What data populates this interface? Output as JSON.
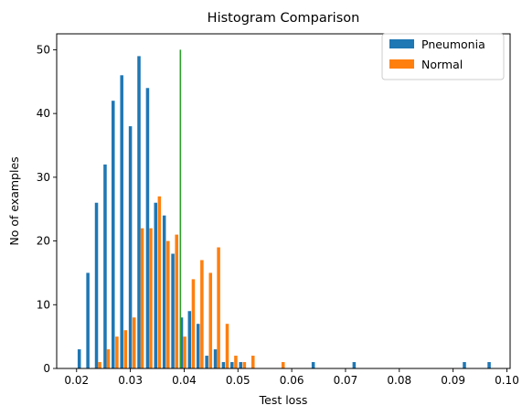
{
  "chart_data": {
    "type": "bar",
    "title": "Histogram Comparison",
    "xlabel": "Test loss",
    "ylabel": "No of examples",
    "xlim": [
      0.0163,
      0.1006
    ],
    "ylim": [
      0,
      52.5
    ],
    "xticks": [
      0.02,
      0.03,
      0.04,
      0.05,
      0.06,
      0.07,
      0.08,
      0.09,
      0.1
    ],
    "xtick_labels": [
      "0.02",
      "0.03",
      "0.04",
      "0.05",
      "0.06",
      "0.07",
      "0.08",
      "0.09",
      "0.10"
    ],
    "yticks": [
      0,
      10,
      20,
      30,
      40,
      50
    ],
    "ytick_labels": [
      "0",
      "10",
      "20",
      "30",
      "40",
      "50"
    ],
    "bar_width": 0.0006,
    "grid": false,
    "legend_position": "top-right",
    "series": [
      {
        "name": "Pneumonia",
        "color": "#1f77b4",
        "bins": [
          {
            "x": 0.0205,
            "y": 3
          },
          {
            "x": 0.0221,
            "y": 15
          },
          {
            "x": 0.0237,
            "y": 26
          },
          {
            "x": 0.0253,
            "y": 32
          },
          {
            "x": 0.0268,
            "y": 42
          },
          {
            "x": 0.0284,
            "y": 46
          },
          {
            "x": 0.03,
            "y": 38
          },
          {
            "x": 0.0316,
            "y": 49
          },
          {
            "x": 0.0332,
            "y": 44
          },
          {
            "x": 0.0347,
            "y": 26
          },
          {
            "x": 0.0363,
            "y": 24
          },
          {
            "x": 0.0379,
            "y": 18
          },
          {
            "x": 0.0395,
            "y": 8
          },
          {
            "x": 0.041,
            "y": 9
          },
          {
            "x": 0.0426,
            "y": 7
          },
          {
            "x": 0.0442,
            "y": 2
          },
          {
            "x": 0.0458,
            "y": 3
          },
          {
            "x": 0.0473,
            "y": 1
          },
          {
            "x": 0.0489,
            "y": 1
          },
          {
            "x": 0.0505,
            "y": 1
          },
          {
            "x": 0.064,
            "y": 1
          },
          {
            "x": 0.0716,
            "y": 1
          },
          {
            "x": 0.0921,
            "y": 1
          },
          {
            "x": 0.0967,
            "y": 1
          }
        ]
      },
      {
        "name": "Normal",
        "color": "#ff7f0e",
        "bins": [
          {
            "x": 0.0243,
            "y": 1
          },
          {
            "x": 0.0259,
            "y": 3
          },
          {
            "x": 0.0275,
            "y": 5
          },
          {
            "x": 0.0291,
            "y": 6
          },
          {
            "x": 0.0307,
            "y": 8
          },
          {
            "x": 0.0322,
            "y": 22
          },
          {
            "x": 0.0338,
            "y": 22
          },
          {
            "x": 0.0354,
            "y": 27
          },
          {
            "x": 0.037,
            "y": 20
          },
          {
            "x": 0.0386,
            "y": 21
          },
          {
            "x": 0.0401,
            "y": 5
          },
          {
            "x": 0.0417,
            "y": 14
          },
          {
            "x": 0.0433,
            "y": 17
          },
          {
            "x": 0.0449,
            "y": 15
          },
          {
            "x": 0.0464,
            "y": 19
          },
          {
            "x": 0.048,
            "y": 7
          },
          {
            "x": 0.0496,
            "y": 2
          },
          {
            "x": 0.0512,
            "y": 1
          },
          {
            "x": 0.0528,
            "y": 2
          },
          {
            "x": 0.0584,
            "y": 1
          }
        ]
      }
    ],
    "threshold_line": {
      "x": 0.0393,
      "y_from": 0,
      "y_to": 50,
      "color": "#2ca02c"
    }
  }
}
